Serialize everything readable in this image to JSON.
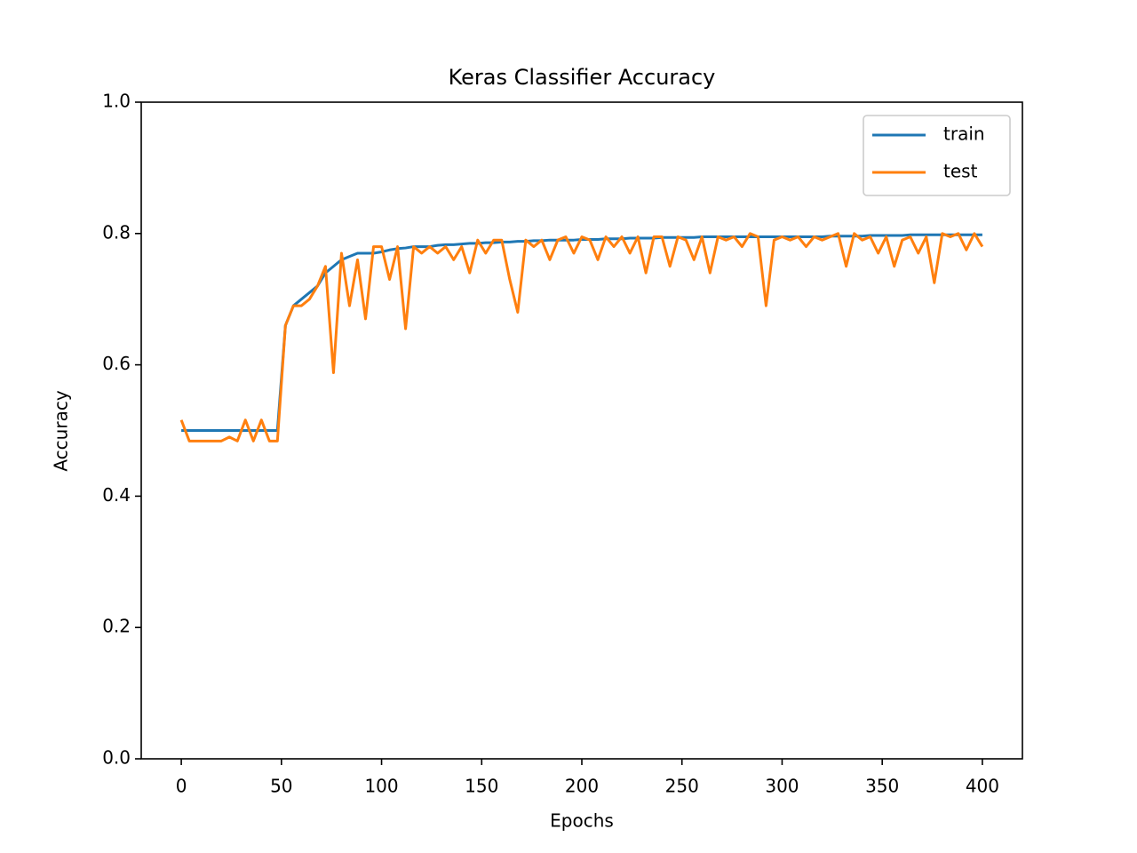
{
  "chart_data": {
    "type": "line",
    "title": "Keras Classifier Accuracy",
    "x_label": "Epochs",
    "y_label": "Accuracy",
    "x": [
      0,
      4,
      8,
      12,
      16,
      20,
      24,
      28,
      32,
      36,
      40,
      44,
      48,
      52,
      56,
      60,
      64,
      68,
      72,
      76,
      80,
      84,
      88,
      92,
      96,
      100,
      104,
      108,
      112,
      116,
      120,
      124,
      128,
      132,
      136,
      140,
      144,
      148,
      152,
      156,
      160,
      164,
      168,
      172,
      176,
      180,
      184,
      188,
      192,
      196,
      200,
      204,
      208,
      212,
      216,
      220,
      224,
      228,
      232,
      236,
      240,
      244,
      248,
      252,
      256,
      260,
      264,
      268,
      272,
      276,
      280,
      284,
      288,
      292,
      296,
      300,
      304,
      308,
      312,
      316,
      320,
      324,
      328,
      332,
      336,
      340,
      344,
      348,
      352,
      356,
      360,
      364,
      368,
      372,
      376,
      380,
      384,
      388,
      392,
      396,
      400
    ],
    "series": [
      {
        "name": "train",
        "color": "#1f77b4",
        "values": [
          0.5,
          0.5,
          0.5,
          0.5,
          0.5,
          0.5,
          0.5,
          0.5,
          0.5,
          0.5,
          0.5,
          0.5,
          0.5,
          0.66,
          0.69,
          0.7,
          0.71,
          0.72,
          0.74,
          0.75,
          0.76,
          0.765,
          0.77,
          0.77,
          0.77,
          0.772,
          0.775,
          0.777,
          0.778,
          0.78,
          0.78,
          0.78,
          0.782,
          0.783,
          0.783,
          0.784,
          0.785,
          0.785,
          0.786,
          0.786,
          0.787,
          0.787,
          0.788,
          0.788,
          0.789,
          0.789,
          0.79,
          0.79,
          0.79,
          0.79,
          0.791,
          0.791,
          0.791,
          0.792,
          0.792,
          0.792,
          0.793,
          0.793,
          0.793,
          0.793,
          0.794,
          0.794,
          0.794,
          0.794,
          0.794,
          0.795,
          0.795,
          0.795,
          0.795,
          0.795,
          0.795,
          0.795,
          0.795,
          0.795,
          0.795,
          0.795,
          0.795,
          0.795,
          0.795,
          0.795,
          0.795,
          0.796,
          0.796,
          0.796,
          0.796,
          0.796,
          0.797,
          0.797,
          0.797,
          0.797,
          0.797,
          0.798,
          0.798,
          0.798,
          0.798,
          0.798,
          0.798,
          0.798,
          0.798,
          0.798,
          0.798
        ]
      },
      {
        "name": "test",
        "color": "#ff7f0e",
        "values": [
          0.516,
          0.484,
          0.484,
          0.484,
          0.484,
          0.484,
          0.49,
          0.484,
          0.516,
          0.484,
          0.516,
          0.484,
          0.484,
          0.66,
          0.69,
          0.69,
          0.7,
          0.72,
          0.75,
          0.588,
          0.77,
          0.69,
          0.76,
          0.67,
          0.78,
          0.78,
          0.73,
          0.78,
          0.655,
          0.78,
          0.77,
          0.78,
          0.77,
          0.78,
          0.76,
          0.78,
          0.74,
          0.79,
          0.77,
          0.79,
          0.79,
          0.73,
          0.68,
          0.79,
          0.78,
          0.79,
          0.76,
          0.79,
          0.795,
          0.77,
          0.795,
          0.79,
          0.76,
          0.795,
          0.78,
          0.795,
          0.77,
          0.795,
          0.74,
          0.795,
          0.795,
          0.75,
          0.795,
          0.79,
          0.76,
          0.795,
          0.74,
          0.795,
          0.79,
          0.795,
          0.78,
          0.8,
          0.795,
          0.69,
          0.79,
          0.795,
          0.79,
          0.795,
          0.78,
          0.795,
          0.79,
          0.795,
          0.8,
          0.75,
          0.8,
          0.79,
          0.795,
          0.77,
          0.795,
          0.75,
          0.79,
          0.795,
          0.77,
          0.795,
          0.725,
          0.8,
          0.795,
          0.8,
          0.775,
          0.8,
          0.78
        ]
      }
    ],
    "xlim": [
      -20,
      420
    ],
    "ylim": [
      0,
      1
    ],
    "xticks": [
      0,
      50,
      100,
      150,
      200,
      250,
      300,
      350,
      400
    ],
    "yticks": [
      {
        "value": 0,
        "label": "0.0"
      },
      0.2,
      0.4,
      0.6,
      0.8,
      {
        "value": 1,
        "label": "1.0"
      }
    ],
    "legend": "upper right"
  }
}
